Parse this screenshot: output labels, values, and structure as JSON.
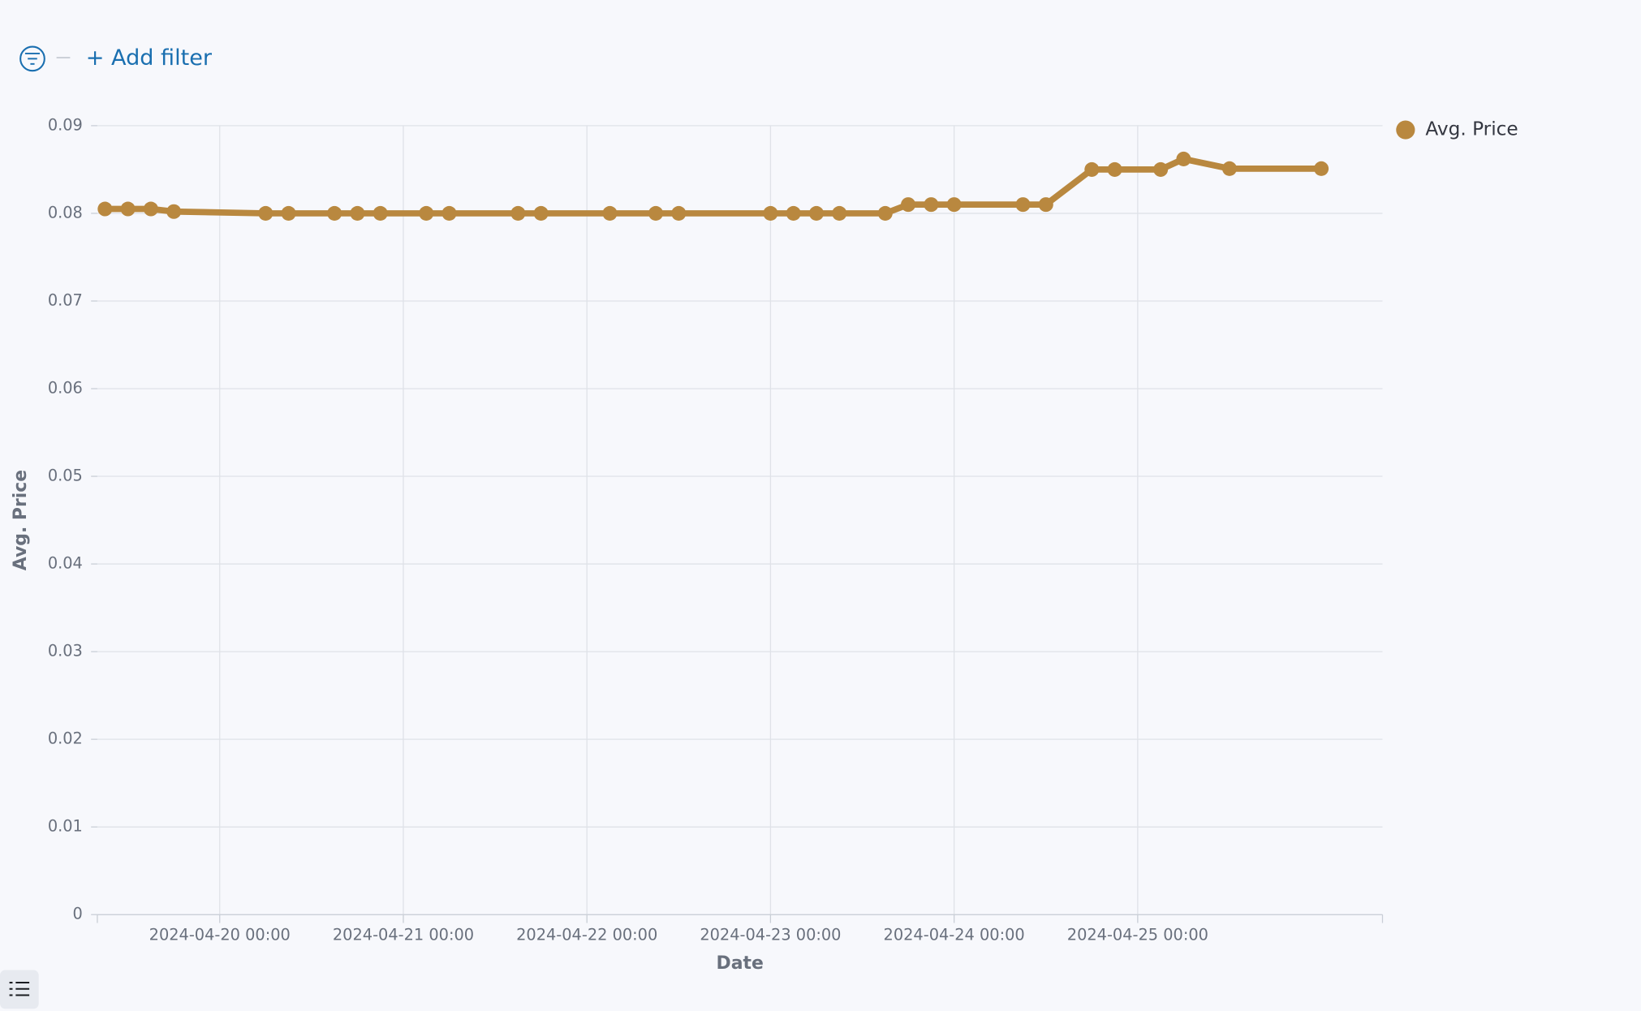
{
  "filter_bar": {
    "add_filter": "+ Add filter"
  },
  "chart_data": {
    "type": "line",
    "y_label": "Avg. Price",
    "x_label": "Date",
    "x": [
      "2024-04-19 09:00",
      "2024-04-19 12:00",
      "2024-04-19 15:00",
      "2024-04-19 18:00",
      "2024-04-20 06:00",
      "2024-04-20 09:00",
      "2024-04-20 15:00",
      "2024-04-20 18:00",
      "2024-04-20 21:00",
      "2024-04-21 03:00",
      "2024-04-21 06:00",
      "2024-04-21 15:00",
      "2024-04-21 18:00",
      "2024-04-22 03:00",
      "2024-04-22 09:00",
      "2024-04-22 12:00",
      "2024-04-23 00:00",
      "2024-04-23 03:00",
      "2024-04-23 06:00",
      "2024-04-23 09:00",
      "2024-04-23 15:00",
      "2024-04-23 18:00",
      "2024-04-23 21:00",
      "2024-04-24 00:00",
      "2024-04-24 09:00",
      "2024-04-24 12:00",
      "2024-04-24 18:00",
      "2024-04-24 21:00",
      "2024-04-25 03:00",
      "2024-04-25 06:00",
      "2024-04-25 12:00",
      "2024-04-26 00:00"
    ],
    "series": [
      {
        "name": "Avg. Price",
        "color": "#b9883f",
        "values": [
          0.0805,
          0.0805,
          0.0805,
          0.0802,
          0.08,
          0.08,
          0.08,
          0.08,
          0.08,
          0.08,
          0.08,
          0.08,
          0.08,
          0.08,
          0.08,
          0.08,
          0.08,
          0.08,
          0.08,
          0.08,
          0.08,
          0.081,
          0.081,
          0.081,
          0.081,
          0.081,
          0.085,
          0.085,
          0.085,
          0.0862,
          0.0851,
          0.0851
        ]
      }
    ],
    "xlim": [
      "2024-04-19 08:00",
      "2024-04-26 08:00"
    ],
    "xticks": [
      "2024-04-20 00:00",
      "2024-04-21 00:00",
      "2024-04-22 00:00",
      "2024-04-23 00:00",
      "2024-04-24 00:00",
      "2024-04-25 00:00"
    ],
    "ylim": [
      0,
      0.09
    ],
    "yticks": [
      0,
      0.01,
      0.02,
      0.03,
      0.04,
      0.05,
      0.06,
      0.07,
      0.08,
      0.09
    ],
    "grid": true,
    "legend": "right"
  }
}
